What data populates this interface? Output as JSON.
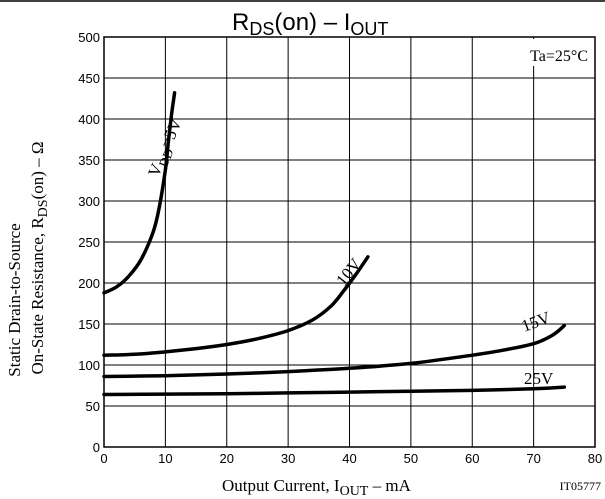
{
  "chart_data": {
    "type": "line",
    "title": {
      "main": "R",
      "sub": "DS",
      "mid": "(on) – I",
      "sub2": "OUT"
    },
    "xlabel": {
      "text": "Output Current, I",
      "sub": "OUT",
      "tail": " – mA"
    },
    "ylabel": {
      "line1": "Static Drain-to-Source",
      "line2": "On-State Resistance, R",
      "line2_sub": "DS",
      "line2_tail": "(on) – Ω"
    },
    "xlim": [
      0,
      80
    ],
    "ylim": [
      0,
      500
    ],
    "x_ticks": [
      0,
      10,
      20,
      30,
      40,
      50,
      60,
      70,
      80
    ],
    "y_ticks": [
      0,
      50,
      100,
      150,
      200,
      250,
      300,
      350,
      400,
      450,
      500
    ],
    "grid": true,
    "annotation": "Ta=25°C",
    "figure_id": "IT05777",
    "series": [
      {
        "name": "VDD=5V",
        "label_main": "V",
        "label_sub": "DD",
        "label_tail": "=5V",
        "x": [
          0,
          2,
          4,
          6,
          8,
          9,
          10,
          10.5,
          11,
          11.5
        ],
        "y": [
          188,
          195,
          208,
          228,
          262,
          292,
          338,
          373,
          405,
          432
        ]
      },
      {
        "name": "10V",
        "label_main": "10V",
        "x": [
          0,
          5,
          10,
          15,
          20,
          25,
          30,
          34,
          37,
          39,
          41,
          43
        ],
        "y": [
          112,
          113,
          116,
          120,
          125,
          132,
          142,
          155,
          172,
          190,
          210,
          232
        ]
      },
      {
        "name": "15V",
        "label_main": "15V",
        "x": [
          0,
          10,
          20,
          30,
          40,
          50,
          60,
          65,
          70,
          73,
          75
        ],
        "y": [
          86,
          87,
          89,
          92,
          96,
          102,
          112,
          118,
          126,
          136,
          148
        ]
      },
      {
        "name": "25V",
        "label_main": "25V",
        "x": [
          0,
          10,
          20,
          30,
          40,
          50,
          60,
          70,
          75
        ],
        "y": [
          64,
          64.5,
          65,
          66,
          67,
          68,
          69,
          71,
          73
        ]
      }
    ]
  }
}
